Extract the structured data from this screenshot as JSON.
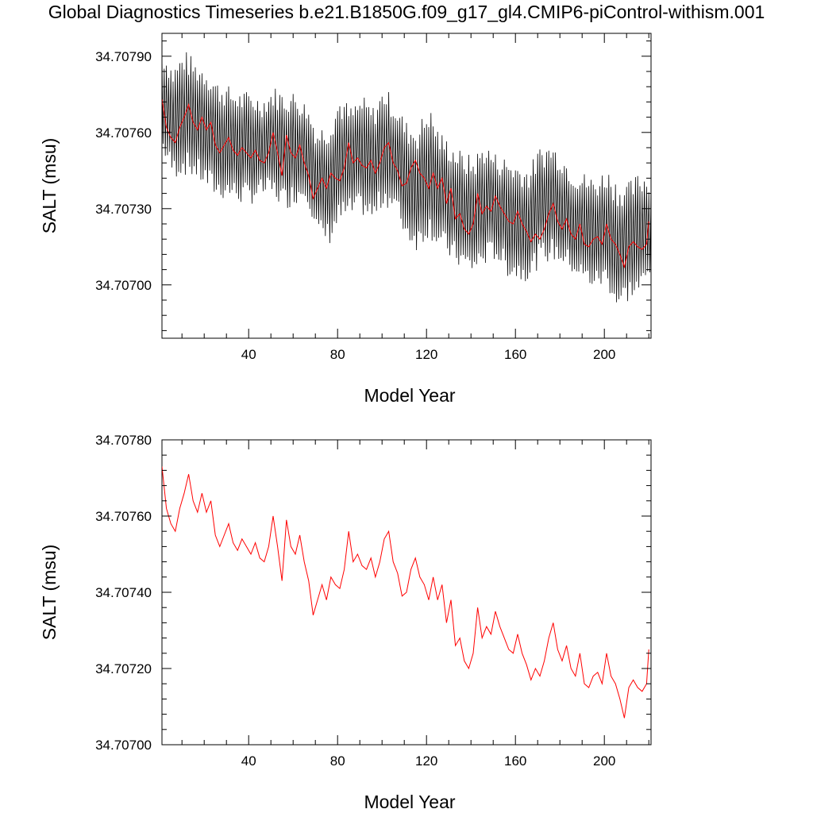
{
  "title": "Global Diagnostics Timeseries b.e21.B1850G.f09_g17_gl4.CMIP6-piControl-withism.001",
  "colors": {
    "monthly": "#000000",
    "annual": "#ff0000",
    "axes": "#000000"
  },
  "chart_data": [
    {
      "type": "line",
      "xlabel": "Model Year",
      "ylabel": "SALT (msu)",
      "xlim": [
        1,
        221
      ],
      "ylim": [
        34.70679,
        34.70799
      ],
      "xticks": [
        40,
        80,
        120,
        160,
        200
      ],
      "yticks": [
        34.707,
        34.7073,
        34.7076,
        34.7079
      ],
      "ytick_labels": [
        "34.70700",
        "34.70730",
        "34.70760",
        "34.70790"
      ],
      "grid": false,
      "series": [
        {
          "kind": "monthly envelope (approximate, oscillating around annual mean)",
          "color": "#000000",
          "x": [
            1,
            6,
            11,
            16,
            21,
            26,
            31,
            36,
            41,
            46,
            51,
            56,
            61,
            66,
            71,
            76,
            81,
            86,
            91,
            96,
            101,
            106,
            111,
            116,
            121,
            126,
            131,
            136,
            141,
            146,
            151,
            156,
            161,
            166,
            171,
            176,
            181,
            186,
            191,
            196,
            201,
            206,
            211,
            216,
            221
          ],
          "upper": [
            34.7079,
            34.70782,
            34.70788,
            34.70784,
            34.70782,
            34.70776,
            34.70774,
            34.70772,
            34.70772,
            34.7077,
            34.70774,
            34.70772,
            34.70772,
            34.70768,
            34.70758,
            34.7076,
            34.7077,
            34.70766,
            34.7077,
            34.70766,
            34.70774,
            34.70768,
            34.7076,
            34.70758,
            34.70766,
            34.70756,
            34.70752,
            34.70748,
            34.70746,
            34.70752,
            34.70748,
            34.70746,
            34.70744,
            34.70742,
            34.7075,
            34.70752,
            34.70748,
            34.70742,
            34.7074,
            34.70738,
            34.70742,
            34.70736,
            34.70736,
            34.7074,
            34.7074
          ],
          "lower": [
            34.70756,
            34.70746,
            34.70748,
            34.70746,
            34.70742,
            34.70738,
            34.70738,
            34.70736,
            34.70736,
            34.70738,
            34.70738,
            34.70734,
            34.70736,
            34.70738,
            34.70722,
            34.7072,
            34.70728,
            34.7073,
            34.70732,
            34.70728,
            34.70736,
            34.70732,
            34.70722,
            34.70718,
            34.70724,
            34.70718,
            34.70714,
            34.7071,
            34.70708,
            34.70712,
            34.70714,
            34.70708,
            34.70706,
            34.70706,
            34.70712,
            34.70714,
            34.70712,
            34.70708,
            34.70704,
            34.70702,
            34.70704,
            34.70694,
            34.70698,
            34.707,
            34.70706
          ]
        },
        {
          "kind": "annual mean",
          "color": "#ff0000",
          "x": [
            1,
            3,
            5,
            7,
            9,
            11,
            13,
            15,
            17,
            19,
            21,
            23,
            25,
            27,
            29,
            31,
            33,
            35,
            37,
            39,
            41,
            43,
            45,
            47,
            49,
            51,
            53,
            55,
            57,
            59,
            61,
            63,
            65,
            67,
            69,
            71,
            73,
            75,
            77,
            79,
            81,
            83,
            85,
            87,
            89,
            91,
            93,
            95,
            97,
            99,
            101,
            103,
            105,
            107,
            109,
            111,
            113,
            115,
            117,
            119,
            121,
            123,
            125,
            127,
            129,
            131,
            133,
            135,
            137,
            139,
            141,
            143,
            145,
            147,
            149,
            151,
            153,
            155,
            157,
            159,
            161,
            163,
            165,
            167,
            169,
            171,
            173,
            175,
            177,
            179,
            181,
            183,
            185,
            187,
            189,
            191,
            193,
            195,
            197,
            199,
            201,
            203,
            205,
            207,
            209,
            211,
            213,
            215,
            217,
            219,
            220
          ],
          "y": [
            34.70773,
            34.70762,
            34.70758,
            34.70756,
            34.70762,
            34.70766,
            34.70771,
            34.70764,
            34.70761,
            34.70766,
            34.70761,
            34.70764,
            34.70755,
            34.70752,
            34.70755,
            34.70758,
            34.70753,
            34.70751,
            34.70754,
            34.70752,
            34.7075,
            34.70753,
            34.70749,
            34.70748,
            34.70752,
            34.7076,
            34.70752,
            34.70743,
            34.70759,
            34.70752,
            34.7075,
            34.70755,
            34.70748,
            34.70743,
            34.70734,
            34.70738,
            34.70742,
            34.70738,
            34.70744,
            34.70742,
            34.70741,
            34.70746,
            34.70756,
            34.70748,
            34.7075,
            34.70747,
            34.70746,
            34.70749,
            34.70744,
            34.70748,
            34.70754,
            34.70756,
            34.70748,
            34.70745,
            34.70739,
            34.7074,
            34.70746,
            34.70749,
            34.70744,
            34.70742,
            34.70738,
            34.70744,
            34.70738,
            34.70742,
            34.70732,
            34.70738,
            34.70726,
            34.70728,
            34.70722,
            34.7072,
            34.70724,
            34.70736,
            34.70728,
            34.70731,
            34.70729,
            34.70735,
            34.70731,
            34.70728,
            34.70725,
            34.70724,
            34.70729,
            34.70724,
            34.70721,
            34.70717,
            34.7072,
            34.70718,
            34.70722,
            34.70728,
            34.70732,
            34.70725,
            34.70722,
            34.70726,
            34.7072,
            34.70718,
            34.70724,
            34.70716,
            34.70715,
            34.70718,
            34.70719,
            34.70716,
            34.70724,
            34.70718,
            34.70716,
            34.70712,
            34.70707,
            34.70715,
            34.70717,
            34.70715,
            34.70714,
            34.70716,
            34.70725
          ]
        }
      ]
    },
    {
      "type": "line",
      "xlabel": "Model Year",
      "ylabel": "SALT (msu)",
      "xlim": [
        1,
        221
      ],
      "ylim": [
        34.707,
        34.7078
      ],
      "xticks": [
        40,
        80,
        120,
        160,
        200
      ],
      "yticks": [
        34.707,
        34.7072,
        34.7074,
        34.7076,
        34.7078
      ],
      "ytick_labels": [
        "34.70700",
        "34.70720",
        "34.70740",
        "34.70760",
        "34.70780"
      ],
      "grid": false,
      "series": [
        {
          "kind": "annual mean",
          "color": "#ff0000",
          "x": [
            1,
            3,
            5,
            7,
            9,
            11,
            13,
            15,
            17,
            19,
            21,
            23,
            25,
            27,
            29,
            31,
            33,
            35,
            37,
            39,
            41,
            43,
            45,
            47,
            49,
            51,
            53,
            55,
            57,
            59,
            61,
            63,
            65,
            67,
            69,
            71,
            73,
            75,
            77,
            79,
            81,
            83,
            85,
            87,
            89,
            91,
            93,
            95,
            97,
            99,
            101,
            103,
            105,
            107,
            109,
            111,
            113,
            115,
            117,
            119,
            121,
            123,
            125,
            127,
            129,
            131,
            133,
            135,
            137,
            139,
            141,
            143,
            145,
            147,
            149,
            151,
            153,
            155,
            157,
            159,
            161,
            163,
            165,
            167,
            169,
            171,
            173,
            175,
            177,
            179,
            181,
            183,
            185,
            187,
            189,
            191,
            193,
            195,
            197,
            199,
            201,
            203,
            205,
            207,
            209,
            211,
            213,
            215,
            217,
            219,
            220
          ],
          "y": [
            34.70773,
            34.70762,
            34.70758,
            34.70756,
            34.70762,
            34.70766,
            34.70771,
            34.70764,
            34.70761,
            34.70766,
            34.70761,
            34.70764,
            34.70755,
            34.70752,
            34.70755,
            34.70758,
            34.70753,
            34.70751,
            34.70754,
            34.70752,
            34.7075,
            34.70753,
            34.70749,
            34.70748,
            34.70752,
            34.7076,
            34.70752,
            34.70743,
            34.70759,
            34.70752,
            34.7075,
            34.70755,
            34.70748,
            34.70743,
            34.70734,
            34.70738,
            34.70742,
            34.70738,
            34.70744,
            34.70742,
            34.70741,
            34.70746,
            34.70756,
            34.70748,
            34.7075,
            34.70747,
            34.70746,
            34.70749,
            34.70744,
            34.70748,
            34.70754,
            34.70756,
            34.70748,
            34.70745,
            34.70739,
            34.7074,
            34.70746,
            34.70749,
            34.70744,
            34.70742,
            34.70738,
            34.70744,
            34.70738,
            34.70742,
            34.70732,
            34.70738,
            34.70726,
            34.70728,
            34.70722,
            34.7072,
            34.70724,
            34.70736,
            34.70728,
            34.70731,
            34.70729,
            34.70735,
            34.70731,
            34.70728,
            34.70725,
            34.70724,
            34.70729,
            34.70724,
            34.70721,
            34.70717,
            34.7072,
            34.70718,
            34.70722,
            34.70728,
            34.70732,
            34.70725,
            34.70722,
            34.70726,
            34.7072,
            34.70718,
            34.70724,
            34.70716,
            34.70715,
            34.70718,
            34.70719,
            34.70716,
            34.70724,
            34.70718,
            34.70716,
            34.70712,
            34.70707,
            34.70715,
            34.70717,
            34.70715,
            34.70714,
            34.70716,
            34.70725
          ]
        }
      ]
    }
  ]
}
